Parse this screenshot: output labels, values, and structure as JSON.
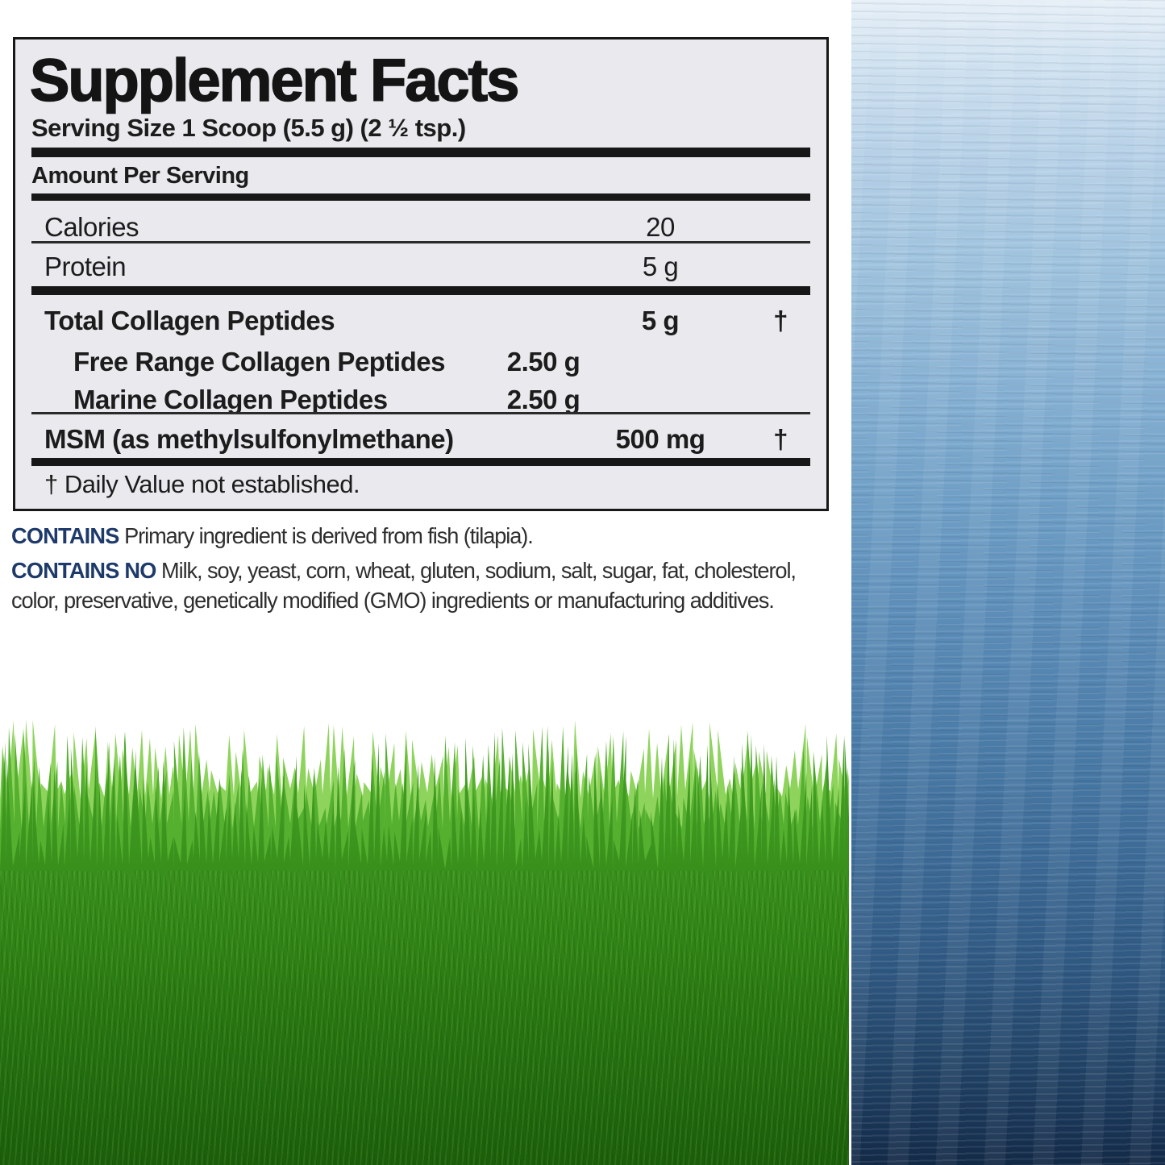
{
  "panel": {
    "title": "Supplement Facts",
    "serving_size": "Serving Size 1 Scoop (5.5 g) (2 ½ tsp.)",
    "amount_per_serving": "Amount Per Serving",
    "rows": [
      {
        "label": "Calories",
        "amount": "20",
        "dagger": ""
      },
      {
        "label": "Protein",
        "amount": "5 g",
        "dagger": ""
      },
      {
        "label": "Total Collagen Peptides",
        "amount": "5 g",
        "dagger": "†"
      },
      {
        "label": "Free Range Collagen Peptides",
        "amount": "2.50 g",
        "dagger": ""
      },
      {
        "label": "Marine Collagen Peptides",
        "amount": "2.50 g",
        "dagger": ""
      },
      {
        "label": "MSM (as methylsulfonylmethane)",
        "amount": "500 mg",
        "dagger": "†"
      }
    ],
    "footnote": "† Daily Value not established."
  },
  "contains": {
    "contains_label": "CONTAINS",
    "contains_text": " Primary ingredient is derived from fish (tilapia).",
    "contains_no_label": "CONTAINS NO",
    "contains_no_text": " Milk, soy, yeast, corn, wheat, gluten, sodium, salt, sugar, fat, cholesterol, color, preservative, genetically modified (GMO) ingredients or manufacturing additives."
  },
  "colors": {
    "accent_navy": "#1d3a6b",
    "panel_bg": "#e9e9ee",
    "panel_border": "#171717",
    "text": "#1c1c1c",
    "water_top": "#e6eff7",
    "water_mid": "#5c8db8",
    "water_bottom": "#132a46",
    "grass_light": "#8ed45c",
    "grass_mid": "#54b02e",
    "grass_dark": "#1f6a0c"
  }
}
